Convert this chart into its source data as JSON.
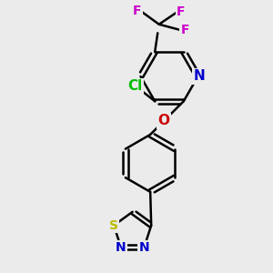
{
  "bg_color": "#ebebeb",
  "bond_color": "#000000",
  "bond_width": 1.8,
  "atom_colors": {
    "Cl": "#00bb00",
    "N": "#0000cc",
    "O": "#cc0000",
    "F": "#cc00cc",
    "S": "#bbbb00",
    "C": "#000000"
  },
  "font_size_atom": 11,
  "font_size_small": 10
}
